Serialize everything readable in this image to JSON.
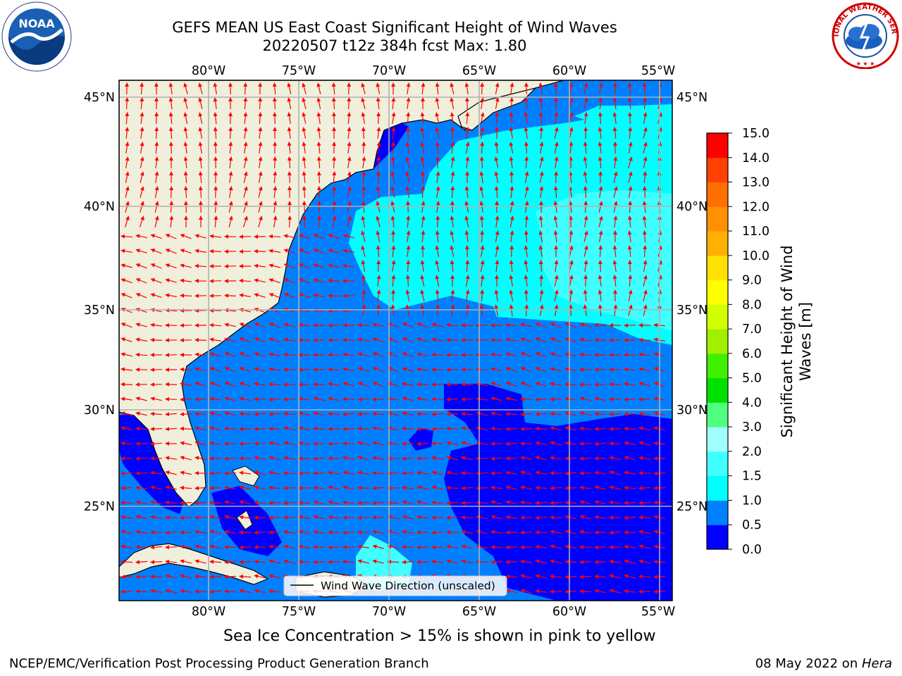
{
  "title": {
    "line1": "GEFS MEAN US East Coast Significant Height of Wind Waves",
    "line2": "20220507 t12z 384h fcst   Max: 1.80"
  },
  "logos": {
    "noaa": {
      "text": "NOAA"
    },
    "nws": {
      "text": "NATIONAL WEATHER SERVICE"
    }
  },
  "map": {
    "region": "US East Coast / Western North Atlantic",
    "lon_range": [
      -85,
      -54
    ],
    "lat_range": [
      20.5,
      46
    ],
    "top_lon_labels": [
      "80°W",
      "75°W",
      "70°W",
      "65°W",
      "60°W",
      "55°W"
    ],
    "bottom_lon_labels": [
      "80°W",
      "75°W",
      "70°W",
      "65°W",
      "60°W",
      "55°W"
    ],
    "left_lat_labels": [
      "45°N",
      "40°N",
      "35°N",
      "30°N",
      "25°N"
    ],
    "right_lat_labels": [
      "45°N",
      "40°N",
      "35°N",
      "30°N",
      "25°N"
    ],
    "gridlines": true,
    "arrow_color": "#ff0000",
    "land_color": "#efefdc",
    "legend": {
      "label": "Wind Wave Direction (unscaled)",
      "position": "bottom-center"
    }
  },
  "colorbar": {
    "title_line1": "Significant Height of Wind",
    "title_line2": "Waves [m]",
    "tick_labels": [
      "0.0",
      "0.5",
      "1.0",
      "1.5",
      "2.0",
      "3.0",
      "4.0",
      "5.0",
      "6.0",
      "7.0",
      "8.0",
      "9.0",
      "10.0",
      "11.0",
      "12.0",
      "13.0",
      "14.0",
      "15.0"
    ],
    "colors": [
      "#0000ff",
      "#0080ff",
      "#00ffff",
      "#40ffff",
      "#a0ffff",
      "#50ff80",
      "#00e000",
      "#40f000",
      "#a0f000",
      "#d0ff00",
      "#ffff00",
      "#ffe000",
      "#ffb000",
      "#ff9000",
      "#ff7000",
      "#ff4000",
      "#ff0000"
    ]
  },
  "footer": {
    "ice_note": "Sea Ice Concentration > 15% is shown in pink to yellow",
    "credit": "NCEP/EMC/Verification Post Processing Product Generation Branch",
    "date_prefix": "08 May 2022 on ",
    "machine": "Hera"
  }
}
